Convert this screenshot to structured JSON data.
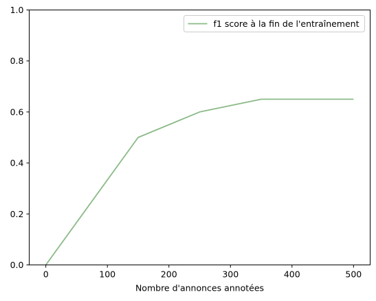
{
  "chart_data": {
    "type": "line",
    "title": "",
    "xlabel": "Nombre d'annonces annotées",
    "ylabel": "",
    "xlim": [
      -27,
      527
    ],
    "ylim": [
      0,
      1
    ],
    "xticks": [
      0,
      100,
      200,
      300,
      400,
      500
    ],
    "yticks": [
      0.0,
      0.2,
      0.4,
      0.6,
      0.8,
      1.0
    ],
    "xtick_labels": [
      "0",
      "100",
      "200",
      "300",
      "400",
      "500"
    ],
    "ytick_labels": [
      "0.0",
      "0.2",
      "0.4",
      "0.6",
      "0.8",
      "1.0"
    ],
    "grid": false,
    "legend_position": "upper right",
    "series": [
      {
        "name": "f1 score à la fin de l'entraînement",
        "color": "#8aba87",
        "x": [
          0,
          150,
          250,
          350,
          500
        ],
        "y": [
          0.0,
          0.5,
          0.6,
          0.65,
          0.65
        ]
      }
    ]
  }
}
